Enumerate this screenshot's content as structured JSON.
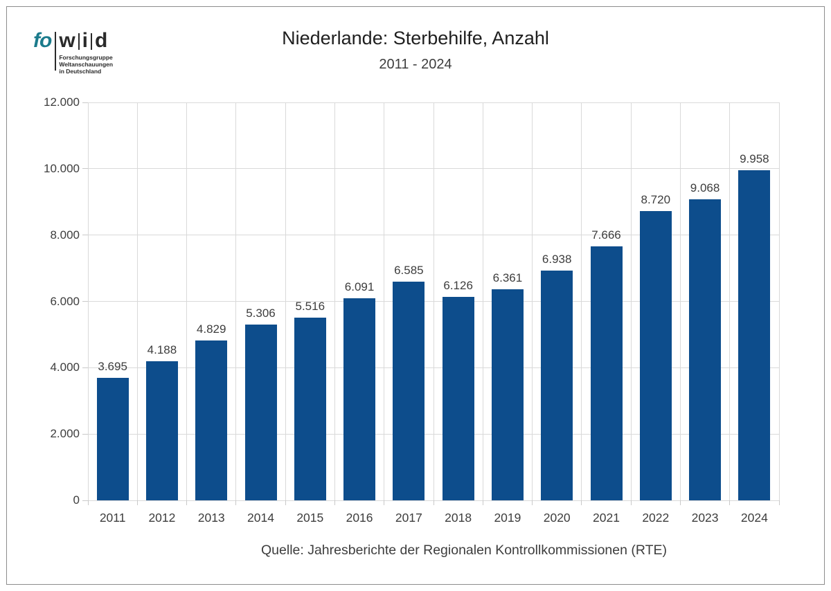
{
  "logo": {
    "part_fo": "fo",
    "part_w": "w",
    "part_i": "i",
    "part_d": "d",
    "sub": [
      "Forschungsgruppe",
      "Weltanschauungen",
      "in Deutschland"
    ],
    "teal_color": "#1b7b8c",
    "dark_color": "#2a2a2a"
  },
  "header": {
    "title": "Niederlande: Sterbehilfe, Anzahl",
    "subtitle": "2011 - 2024"
  },
  "source": "Quelle: Jahresberichte der Regionalen Kontrollkommissionen (RTE)",
  "chart_data": {
    "type": "bar",
    "title": "Niederlande: Sterbehilfe, Anzahl",
    "subtitle": "2011 - 2024",
    "categories": [
      "2011",
      "2012",
      "2013",
      "2014",
      "2015",
      "2016",
      "2017",
      "2018",
      "2019",
      "2020",
      "2021",
      "2022",
      "2023",
      "2024"
    ],
    "values": [
      3695,
      4188,
      4829,
      5306,
      5516,
      6091,
      6585,
      6126,
      6361,
      6938,
      7666,
      8720,
      9068,
      9958
    ],
    "value_labels": [
      "3.695",
      "4.188",
      "4.829",
      "5.306",
      "5.516",
      "6.091",
      "6.585",
      "6.126",
      "6.361",
      "6.938",
      "7.666",
      "8.720",
      "9.068",
      "9.958"
    ],
    "xlabel": "",
    "ylabel": "",
    "ylim": [
      0,
      12000
    ],
    "ytick_step": 2000,
    "ytick_labels": [
      "0",
      "2.000",
      "4.000",
      "6.000",
      "8.000",
      "10.000",
      "12.000"
    ],
    "grid": true,
    "legend": "none",
    "bar_color": "#0d4d8c",
    "grid_color": "#d9d9d9",
    "label_color": "#3d3d3d"
  }
}
